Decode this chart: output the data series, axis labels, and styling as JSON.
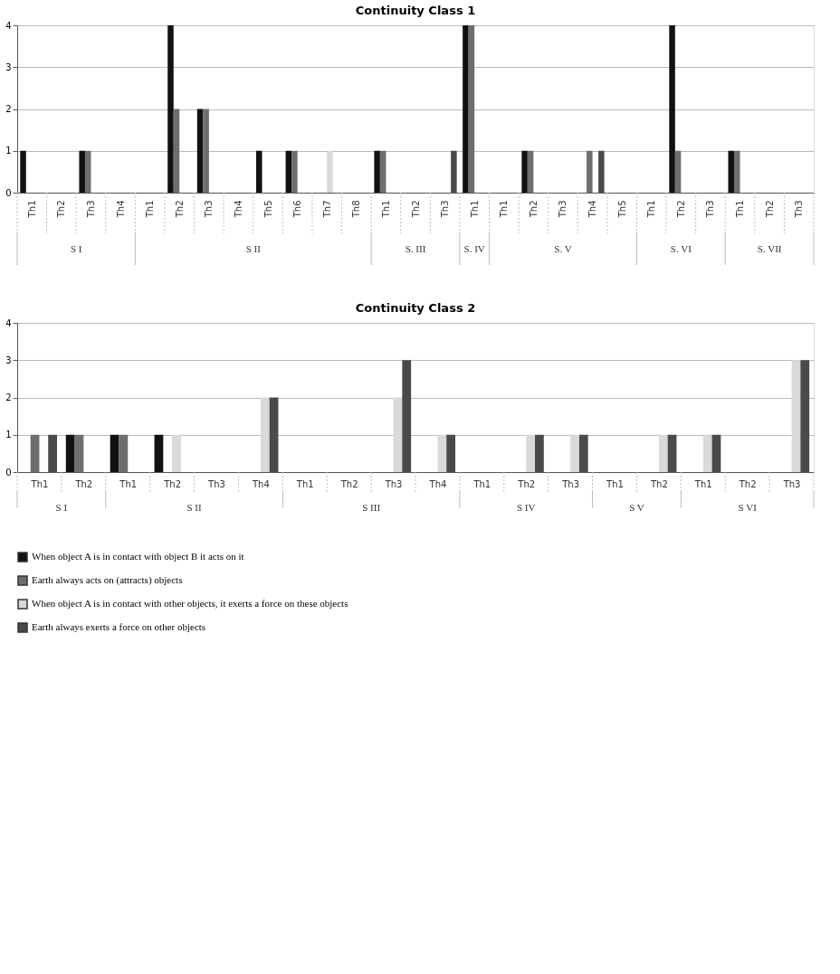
{
  "chart_data": [
    {
      "type": "bar",
      "title": "Continuity Class 1",
      "categories": [
        "Th1",
        "Th2",
        "Th3",
        "Th4",
        "Th1",
        "Th2",
        "Th3",
        "Th4",
        "Th5",
        "Th6",
        "Th7",
        "Th8",
        "Th1",
        "Th2",
        "Th3",
        "Th1",
        "Th1",
        "Th2",
        "Th3",
        "Th4",
        "Th5",
        "Th1",
        "Th2",
        "Th3",
        "Th1",
        "Th2",
        "Th3"
      ],
      "annotations": [
        "S I",
        "S II",
        "S. III",
        "S. IV",
        "S. V",
        "S. VI",
        "S. VII"
      ],
      "series": [
        {
          "color": "#111111",
          "values": [
            1,
            0,
            1,
            0,
            0,
            4,
            2,
            0,
            1,
            1,
            0,
            0,
            1,
            0,
            0,
            4,
            0,
            1,
            0,
            0,
            0,
            0,
            4,
            0,
            1,
            0,
            0
          ]
        },
        {
          "color": "#6e6e6e",
          "values": [
            0,
            0,
            1,
            0,
            0,
            2,
            2,
            0,
            0,
            1,
            0,
            0,
            1,
            0,
            0,
            4,
            0,
            1,
            0,
            1,
            0,
            0,
            1,
            0,
            1,
            0,
            0
          ]
        },
        {
          "color": "#d9d9d9",
          "values": [
            0,
            0,
            0,
            0,
            0,
            0,
            0,
            0,
            0,
            0,
            1,
            0,
            0,
            0,
            0,
            0,
            0,
            0,
            0,
            0,
            0,
            0,
            0,
            0,
            0,
            0,
            0
          ]
        },
        {
          "color": "#4a4a4a",
          "values": [
            0,
            0,
            0,
            0,
            0,
            0,
            0,
            0,
            0,
            0,
            0,
            0,
            0,
            0,
            1,
            0,
            0,
            0,
            0,
            1,
            0,
            0,
            0,
            0,
            0,
            0,
            0
          ]
        }
      ],
      "ylim": [
        0,
        4
      ],
      "yticks": [
        0,
        1,
        2,
        3,
        4
      ],
      "grid": "y"
    },
    {
      "type": "bar",
      "title": "Continuity Class 2",
      "categories": [
        "Th1",
        "Th2",
        "Th1",
        "Th2",
        "Th3",
        "Th4",
        "Th1",
        "Th2",
        "Th3",
        "Th4",
        "Th1",
        "Th2",
        "Th3",
        "Th1",
        "Th2",
        "Th1",
        "Th2",
        "Th3"
      ],
      "annotations": [
        "S I",
        "S II",
        "S III",
        "S IV",
        "S V",
        "S VI"
      ],
      "series": [
        {
          "name": "When object A is in contact with object B it acts on it",
          "color": "#111111",
          "values": [
            0,
            1,
            1,
            1,
            0,
            0,
            0,
            0,
            0,
            0,
            0,
            0,
            0,
            0,
            0,
            0,
            0,
            0
          ]
        },
        {
          "name": "Earth always acts on (attracts) objects",
          "color": "#6e6e6e",
          "values": [
            1,
            1,
            1,
            0,
            0,
            0,
            0,
            0,
            0,
            0,
            0,
            0,
            0,
            0,
            0,
            0,
            0,
            0
          ]
        },
        {
          "name": "When object A is in contact with other objects, it exerts a force on these objects",
          "color": "#d9d9d9",
          "values": [
            0,
            0,
            0,
            1,
            0,
            2,
            0,
            0,
            2,
            1,
            0,
            1,
            1,
            0,
            1,
            1,
            0,
            3
          ]
        },
        {
          "name": "Earth always exerts a force on other objects",
          "color": "#4a4a4a",
          "values": [
            1,
            0,
            0,
            0,
            0,
            2,
            0,
            0,
            3,
            1,
            0,
            1,
            1,
            0,
            1,
            1,
            0,
            3
          ]
        }
      ],
      "ylim": [
        0,
        4
      ],
      "yticks": [
        0,
        1,
        2,
        3,
        4
      ],
      "grid": "y",
      "legend": "bottom"
    }
  ]
}
